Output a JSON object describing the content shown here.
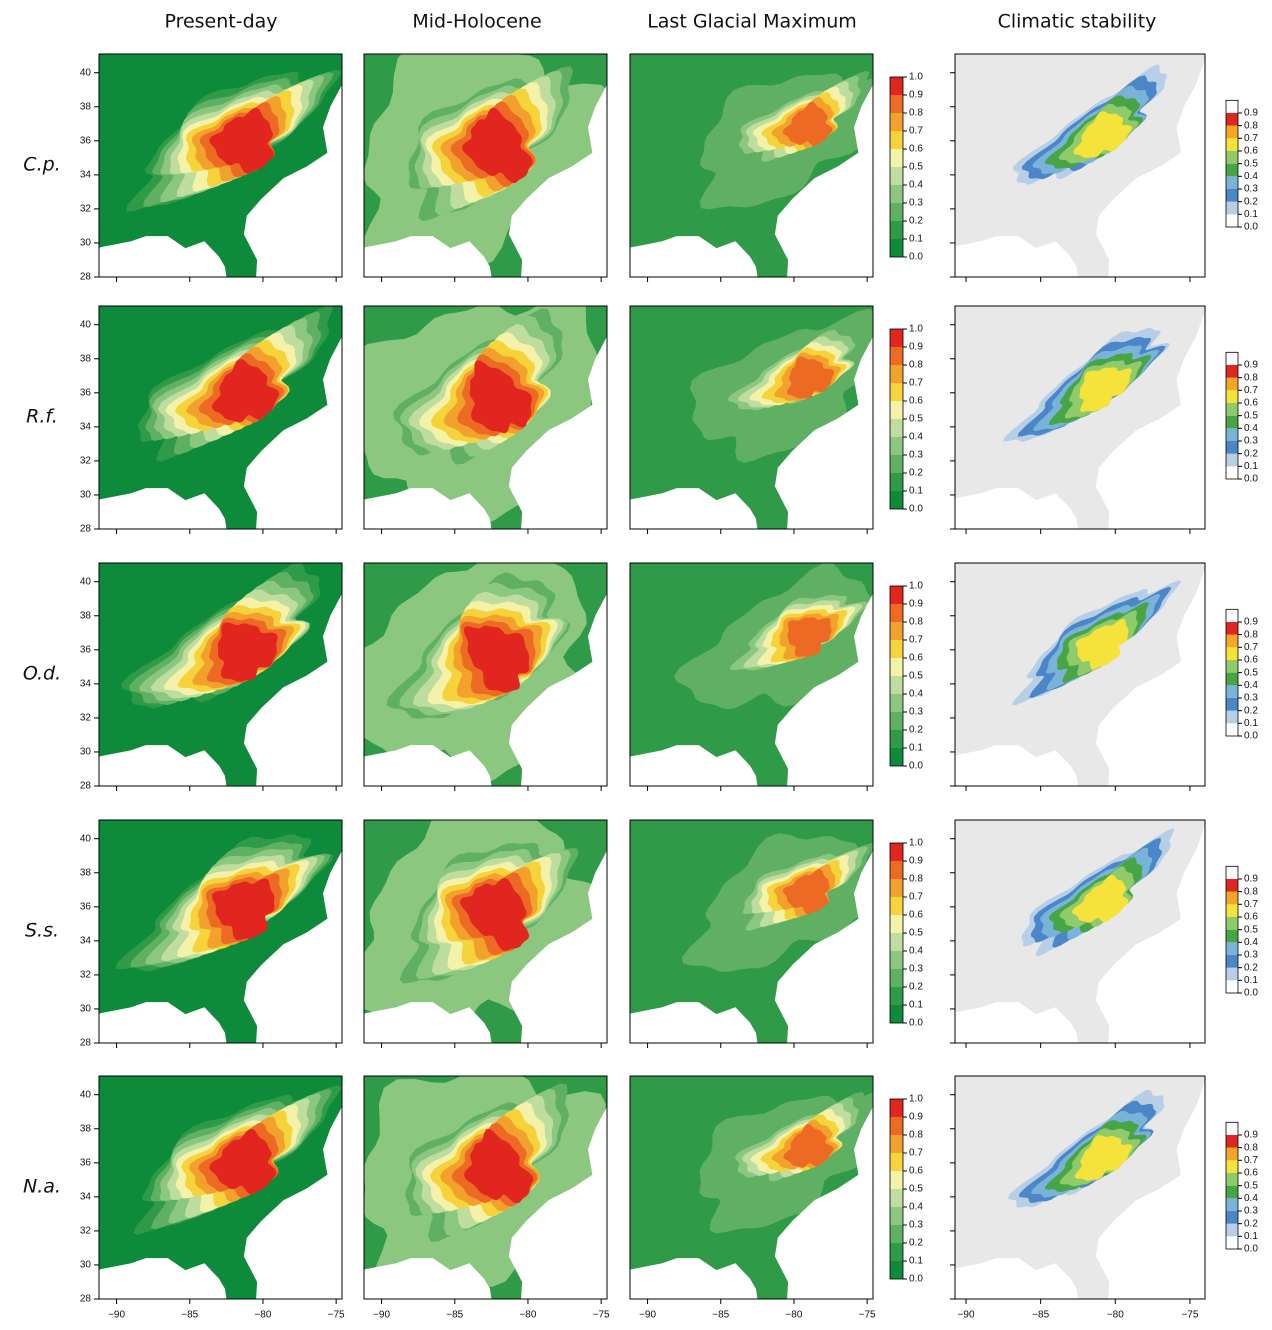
{
  "columns": [
    "Present-day",
    "Mid-Holocene",
    "Last Glacial Maximum",
    "Climatic stability"
  ],
  "rows": [
    "C.p.",
    "R.f.",
    "O.d.",
    "S.s.",
    "N.a."
  ],
  "latitude_ticks": [
    28,
    30,
    32,
    34,
    36,
    38,
    40
  ],
  "longitude_ticks": [
    {
      "value": -90,
      "label": "−90"
    },
    {
      "value": -85,
      "label": "−85"
    },
    {
      "value": -80,
      "label": "−80"
    },
    {
      "value": -75,
      "label": "−75"
    }
  ],
  "suitability_scale": {
    "ticks": [
      {
        "value": 0,
        "label": "0.0"
      },
      {
        "value": 0.1,
        "label": "0.1"
      },
      {
        "value": 0.2,
        "label": "0.2"
      },
      {
        "value": 0.3,
        "label": "0.3"
      },
      {
        "value": 0.4,
        "label": "0.4"
      },
      {
        "value": 0.5,
        "label": "0.5"
      },
      {
        "value": 0.6,
        "label": "0.6"
      },
      {
        "value": 0.7,
        "label": "0.7"
      },
      {
        "value": 0.8,
        "label": "0.8"
      },
      {
        "value": 0.9,
        "label": "0.9"
      },
      {
        "value": 1,
        "label": "1.0"
      }
    ],
    "colors": [
      "#0d8a3a",
      "#2f9a48",
      "#5fb063",
      "#8cc77f",
      "#bfdd9e",
      "#f4f2a8",
      "#f6d33a",
      "#f2a12d",
      "#ec6a23",
      "#e0261e"
    ]
  },
  "stability_scale": {
    "ticks": [
      {
        "value": 0,
        "label": "0.0"
      },
      {
        "value": 0.1,
        "label": "0.1"
      },
      {
        "value": 0.2,
        "label": "0.2"
      },
      {
        "value": 0.3,
        "label": "0.3"
      },
      {
        "value": 0.4,
        "label": "0.4"
      },
      {
        "value": 0.5,
        "label": "0.5"
      },
      {
        "value": 0.6,
        "label": "0.6"
      },
      {
        "value": 0.7,
        "label": "0.7"
      },
      {
        "value": 0.8,
        "label": "0.8"
      },
      {
        "value": 0.9,
        "label": "0.9"
      }
    ],
    "colors": [
      "#ffffff",
      "#b7cfe6",
      "#4a86c8",
      "#7ab3d9",
      "#48a546",
      "#8fcb6a",
      "#f5e23a",
      "#f5a623",
      "#e0261e"
    ]
  }
}
